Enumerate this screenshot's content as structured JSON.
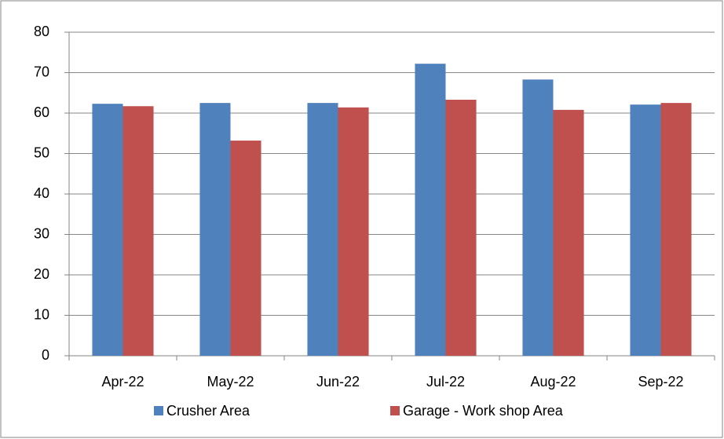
{
  "chart_data": {
    "type": "bar",
    "categories": [
      "Apr-22",
      "May-22",
      "Jun-22",
      "Jul-22",
      "Aug-22",
      "Sep-22"
    ],
    "series": [
      {
        "name": "Crusher Area",
        "color": "#4f81bd",
        "values": [
          62.3,
          62.5,
          62.5,
          72.2,
          68.3,
          62.1
        ]
      },
      {
        "name": "Garage - Work shop Area",
        "color": "#c0504d",
        "values": [
          61.7,
          53.2,
          61.4,
          63.3,
          60.8,
          62.5
        ]
      }
    ],
    "ylim": [
      0,
      80
    ],
    "yticks": [
      0,
      10,
      20,
      30,
      40,
      50,
      60,
      70,
      80
    ],
    "grid": true,
    "legend": "bottom"
  }
}
